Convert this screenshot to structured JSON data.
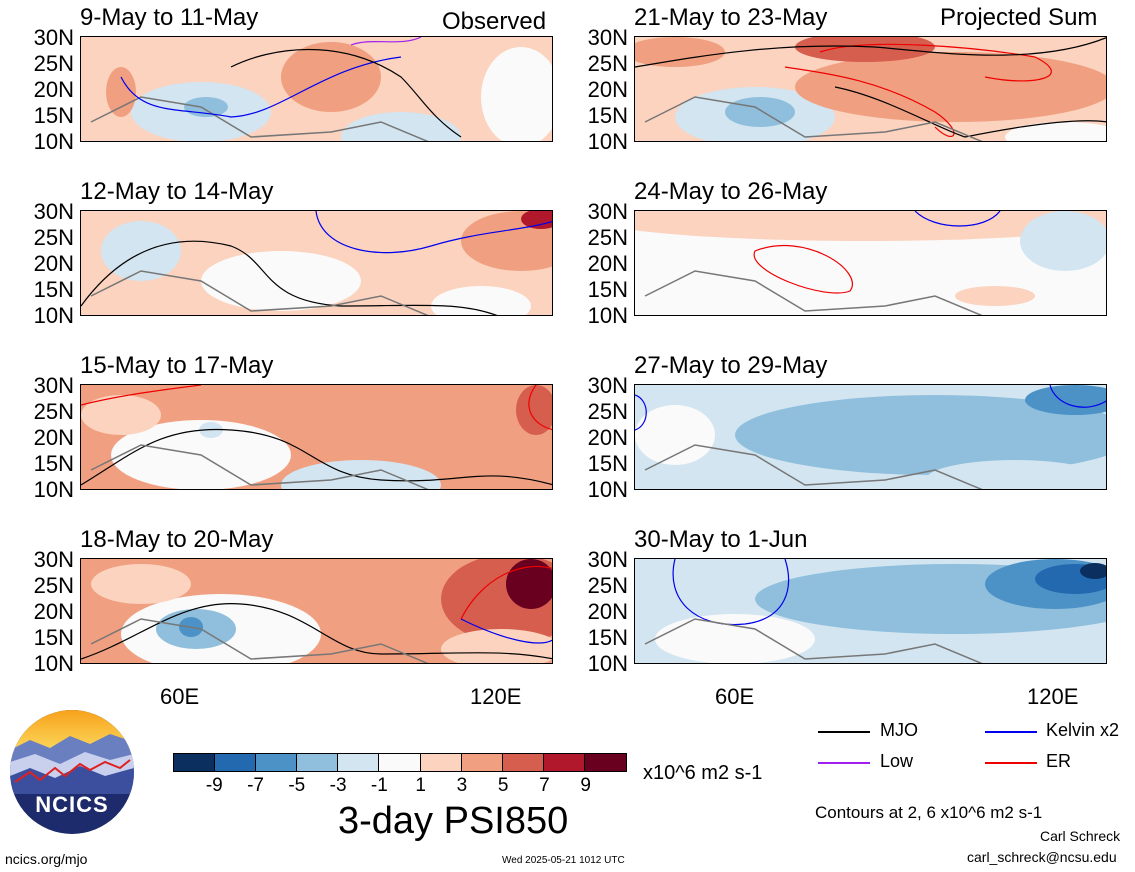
{
  "panels_left": [
    {
      "title": "9-May to 11-May",
      "tag": "Observed"
    },
    {
      "title": "12-May to 14-May",
      "tag": ""
    },
    {
      "title": "15-May to 17-May",
      "tag": ""
    },
    {
      "title": "18-May to 20-May",
      "tag": ""
    }
  ],
  "panels_right": [
    {
      "title": "21-May to 23-May",
      "tag": "Projected Sum"
    },
    {
      "title": "24-May to 26-May",
      "tag": ""
    },
    {
      "title": "27-May to 29-May",
      "tag": ""
    },
    {
      "title": "30-May to 1-Jun",
      "tag": ""
    }
  ],
  "lat_labels": [
    "30N",
    "25N",
    "20N",
    "15N",
    "10N"
  ],
  "lon_labels": [
    "60E",
    "120E"
  ],
  "colorbar": {
    "ticks": [
      "-9",
      "-7",
      "-5",
      "-3",
      "-1",
      "1",
      "3",
      "5",
      "7",
      "9"
    ],
    "colors": [
      "#0b2f5e",
      "#2369b0",
      "#4d92c6",
      "#8fbfdc",
      "#d2e5f1",
      "#fafafa",
      "#fbd3bf",
      "#f0a080",
      "#d65e4e",
      "#b2182b",
      "#6a0020"
    ],
    "units": "x10^6 m2 s-1"
  },
  "title": "3-day PSI850",
  "legend": [
    {
      "label": "MJO",
      "color": "#000000"
    },
    {
      "label": "Kelvin x2",
      "color": "#0000ee"
    },
    {
      "label": "Low",
      "color": "#a020f0"
    },
    {
      "label": "ER",
      "color": "#ee0000"
    }
  ],
  "contours_note": "Contours at 2, 6 x10^6 m2 s-1",
  "logo_text": "NCICS",
  "site": "ncics.org/mjo",
  "timestamp": "Wed 2025-05-21 1012 UTC",
  "author": "Carl Schreck",
  "email": "carl_schreck@ncsu.edu"
}
